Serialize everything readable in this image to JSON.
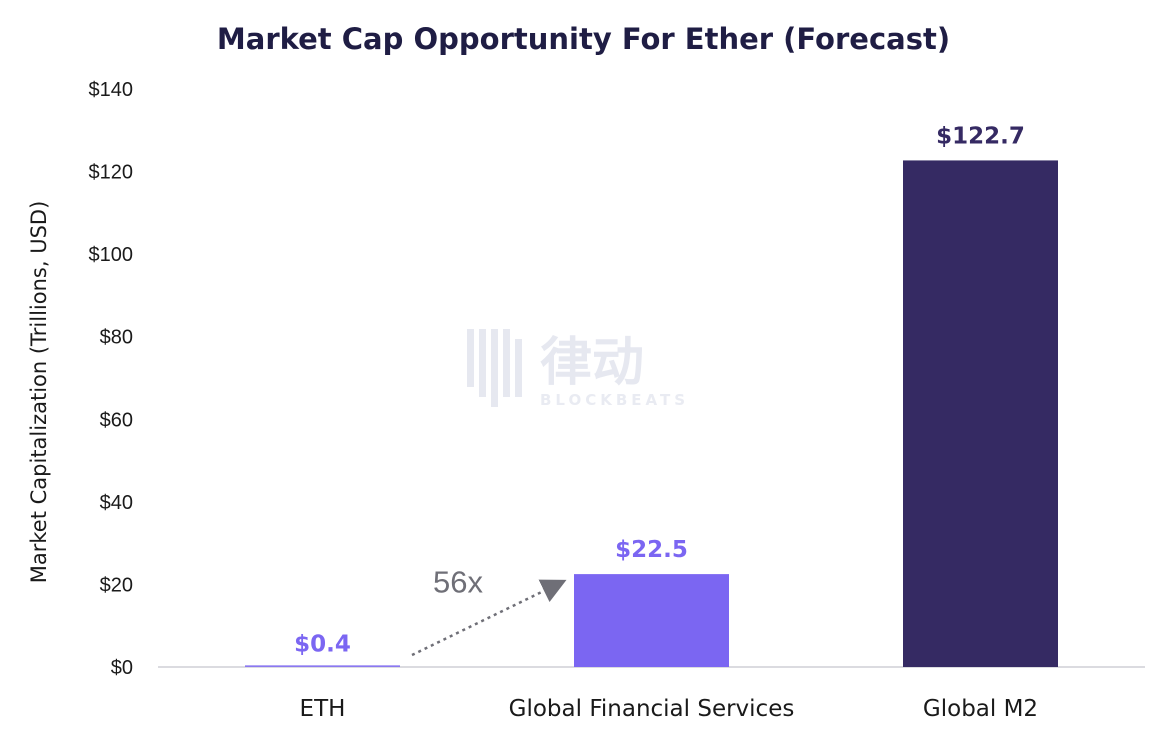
{
  "chart_data": {
    "type": "bar",
    "title": "Market Cap Opportunity For Ether (Forecast)",
    "xlabel": "",
    "ylabel": "Market Capitalization (Trillions, USD)",
    "categories": [
      "ETH",
      "Global Financial Services",
      "Global M2"
    ],
    "values": [
      0.4,
      22.5,
      122.7
    ],
    "data_labels": [
      "$0.4",
      "$22.5",
      "$122.7"
    ],
    "bar_colors": [
      "#8b78f0",
      "#7b66f2",
      "#352a63"
    ],
    "label_colors": [
      "#7b66f2",
      "#7b66f2",
      "#352a63"
    ],
    "ylim": [
      0,
      140
    ],
    "yticks": [
      0,
      20,
      40,
      60,
      80,
      100,
      120,
      140
    ],
    "ytick_labels": [
      "$0",
      "$20",
      "$40",
      "$60",
      "$80",
      "$100",
      "$120",
      "$140"
    ],
    "grid": false,
    "annotation": {
      "text": "56x",
      "from_category": "ETH",
      "to_category": "Global Financial Services"
    }
  },
  "watermark": {
    "cn": "律动",
    "en": "BLOCKBEATS"
  }
}
